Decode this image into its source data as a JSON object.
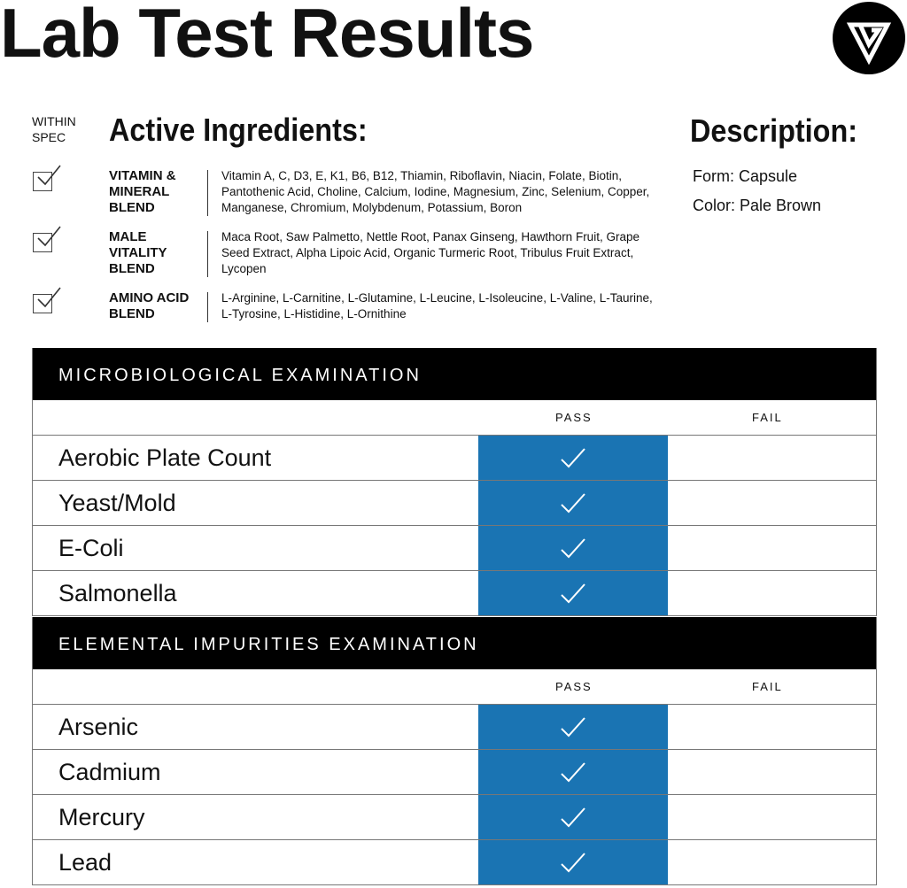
{
  "title": "Lab Test Results",
  "within_spec": "WITHIN SPEC",
  "active_ingredients_heading": "Active Ingredients:",
  "description": {
    "heading": "Description:",
    "form": "Form: Capsule",
    "color": "Color: Pale Brown"
  },
  "blends": [
    {
      "name": "VITAMIN & MINERAL BLEND",
      "within_spec": true,
      "ingredients": "Vitamin A, C, D3, E, K1, B6, B12, Thiamin, Riboflavin, Niacin, Folate, Biotin, Pantothenic Acid, Choline, Calcium, Iodine, Magnesium, Zinc, Selenium, Copper, Manganese, Chromium, Molybdenum, Potassium, Boron"
    },
    {
      "name": "MALE VITALITY BLEND",
      "within_spec": true,
      "ingredients": "Maca Root, Saw Palmetto, Nettle Root, Panax Ginseng, Hawthorn Fruit, Grape Seed Extract, Alpha Lipoic Acid, Organic Turmeric Root, Tribulus Fruit Extract, Lycopen"
    },
    {
      "name": "AMINO ACID BLEND",
      "within_spec": true,
      "ingredients": "L-Arginine, L-Carnitine, L-Glutamine, L-Leucine, L-Isoleucine, L-Valine, L-Taurine, L-Tyrosine, L-Histidine, L-Ornithine"
    }
  ],
  "sections": [
    {
      "title": "MICROBIOLOGICAL EXAMINATION",
      "pass_label": "PASS",
      "fail_label": "FAIL",
      "rows": [
        {
          "label": "Aerobic Plate Count",
          "result": "pass"
        },
        {
          "label": "Yeast/Mold",
          "result": "pass"
        },
        {
          "label": "E-Coli",
          "result": "pass"
        },
        {
          "label": "Salmonella",
          "result": "pass"
        }
      ]
    },
    {
      "title": "ELEMENTAL IMPURITIES EXAMINATION",
      "pass_label": "PASS",
      "fail_label": "FAIL",
      "rows": [
        {
          "label": "Arsenic",
          "result": "pass"
        },
        {
          "label": "Cadmium",
          "result": "pass"
        },
        {
          "label": "Mercury",
          "result": "pass"
        },
        {
          "label": "Lead",
          "result": "pass"
        }
      ]
    }
  ],
  "colors": {
    "pass": "#1a74b3",
    "header": "#000000"
  },
  "icons": {
    "logo": "triangle-v-logo",
    "check": "checkmark-icon",
    "checkbox": "checked-box-icon"
  }
}
